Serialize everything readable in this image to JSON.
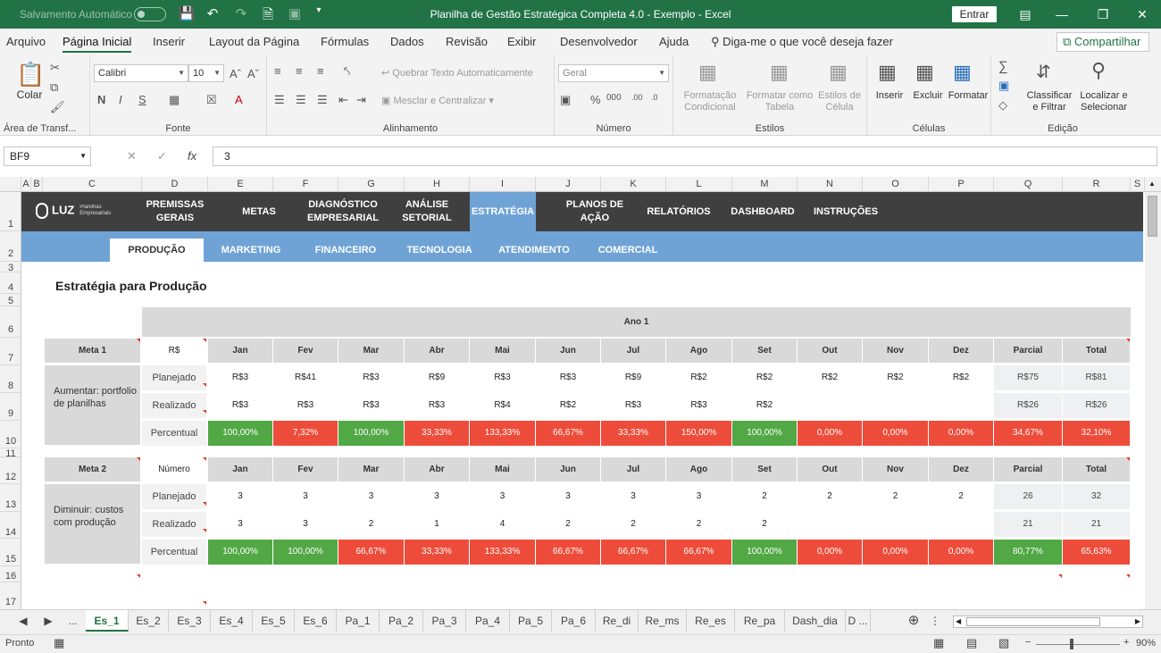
{
  "titlebar": {
    "autosave": "Salvamento Automático",
    "title": "Planilha de Gestão Estratégica Completa 4.0 - Exemplo  -  Excel",
    "entrar": "Entrar"
  },
  "menu": {
    "items": [
      "Arquivo",
      "Página Inicial",
      "Inserir",
      "Layout da Página",
      "Fórmulas",
      "Dados",
      "Revisão",
      "Exibir",
      "Desenvolvedor",
      "Ajuda"
    ],
    "tell_me": "Diga-me o que você deseja fazer",
    "share": "Compartilhar"
  },
  "ribbon": {
    "clipboard": {
      "paste": "Colar",
      "label": "Área de Transf..."
    },
    "font": {
      "name": "Calibri",
      "size": "10",
      "label": "Fonte"
    },
    "alignment": {
      "wrap": "Quebrar Texto Automaticamente",
      "merge": "Mesclar e Centralizar",
      "label": "Alinhamento"
    },
    "number": {
      "format": "Geral",
      "label": "Número"
    },
    "styles": {
      "conditional": "Formatação Condicional",
      "table": "Formatar como Tabela",
      "cell": "Estilos de Célula",
      "label": "Estilos"
    },
    "cells": {
      "insert": "Inserir",
      "delete": "Excluir",
      "format": "Formatar",
      "label": "Células"
    },
    "editing": {
      "sort": "Classificar e Filtrar",
      "find": "Localizar e Selecionar",
      "label": "Edição"
    }
  },
  "formula": {
    "namebox": "BF9",
    "value": "3"
  },
  "columns": [
    "A",
    "B",
    "C",
    "D",
    "E",
    "F",
    "G",
    "H",
    "I",
    "J",
    "K",
    "L",
    "M",
    "N",
    "O",
    "P",
    "Q",
    "R",
    "S"
  ],
  "rows": [
    "1",
    "2",
    "3",
    "4",
    "5",
    "6",
    "7",
    "8",
    "9",
    "10",
    "11",
    "12",
    "13",
    "14",
    "15",
    "16",
    "17"
  ],
  "nav": {
    "logo": "LUZ",
    "logo_sub": "Planilhas Empresariais",
    "items": [
      "PREMISSAS GERAIS",
      "METAS",
      "DIAGNÓSTICO EMPRESARIAL",
      "ANÁLISE SETORIAL",
      "ESTRATÉGIA",
      "PLANOS DE AÇÃO",
      "RELATÓRIOS",
      "DASHBOARD",
      "INSTRUÇÕES"
    ],
    "sub": [
      "PRODUÇÃO",
      "MARKETING",
      "FINANCEIRO",
      "TECNOLOGIA",
      "ATENDIMENTO",
      "COMERCIAL"
    ]
  },
  "page": {
    "heading": "Estratégia para Produção",
    "year": "Ano 1"
  },
  "months": [
    "Jan",
    "Fev",
    "Mar",
    "Abr",
    "Mai",
    "Jun",
    "Jul",
    "Ago",
    "Set",
    "Out",
    "Nov",
    "Dez",
    "Parcial",
    "Total"
  ],
  "row_labels": [
    "Planejado",
    "Realizado",
    "Percentual"
  ],
  "meta1": {
    "name": "Meta 1",
    "unit": "R$",
    "desc": "Aumentar: portfolio de planilhas",
    "planned": [
      "R$3",
      "R$41",
      "R$3",
      "R$9",
      "R$3",
      "R$3",
      "R$9",
      "R$2",
      "R$2",
      "R$2",
      "R$2",
      "R$2",
      "R$75",
      "R$81"
    ],
    "actual": [
      "R$3",
      "R$3",
      "R$3",
      "R$3",
      "R$4",
      "R$2",
      "R$3",
      "R$3",
      "R$2",
      "",
      "",
      "",
      "R$26",
      "R$26"
    ],
    "percent": [
      "100,00%",
      "7,32%",
      "100,00%",
      "33,33%",
      "133,33%",
      "66,67%",
      "33,33%",
      "150,00%",
      "100,00%",
      "0,00%",
      "0,00%",
      "0,00%",
      "34,67%",
      "32,10%"
    ],
    "status": [
      "green",
      "red",
      "green",
      "red",
      "red",
      "red",
      "red",
      "red",
      "green",
      "red",
      "red",
      "red",
      "red",
      "red"
    ]
  },
  "meta2": {
    "name": "Meta 2",
    "unit": "Número",
    "desc": "Diminuir: custos com produção",
    "planned": [
      "3",
      "3",
      "3",
      "3",
      "3",
      "3",
      "3",
      "3",
      "2",
      "2",
      "2",
      "2",
      "26",
      "32"
    ],
    "actual": [
      "3",
      "3",
      "2",
      "1",
      "4",
      "2",
      "2",
      "2",
      "2",
      "",
      "",
      "",
      "21",
      "21"
    ],
    "percent": [
      "100,00%",
      "100,00%",
      "66,67%",
      "33,33%",
      "133,33%",
      "66,67%",
      "66,67%",
      "66,67%",
      "100,00%",
      "0,00%",
      "0,00%",
      "0,00%",
      "80,77%",
      "65,63%"
    ],
    "status": [
      "green",
      "green",
      "red",
      "red",
      "red",
      "red",
      "red",
      "red",
      "green",
      "red",
      "red",
      "red",
      "green",
      "red"
    ]
  },
  "colors": {
    "excel_green": "#217346",
    "good": "#51a845",
    "bad": "#ee4c3a",
    "nav_dark": "#3f3f3f",
    "nav_blue": "#6fa3d6"
  },
  "sheet_tabs": [
    "Es_1",
    "Es_2",
    "Es_3",
    "Es_4",
    "Es_5",
    "Es_6",
    "Pa_1",
    "Pa_2",
    "Pa_3",
    "Pa_4",
    "Pa_5",
    "Pa_6",
    "Re_di",
    "Re_ms",
    "Re_es",
    "Re_pa",
    "Dash_dia",
    "D ..."
  ],
  "status": {
    "ready": "Pronto",
    "zoom": "90%"
  }
}
